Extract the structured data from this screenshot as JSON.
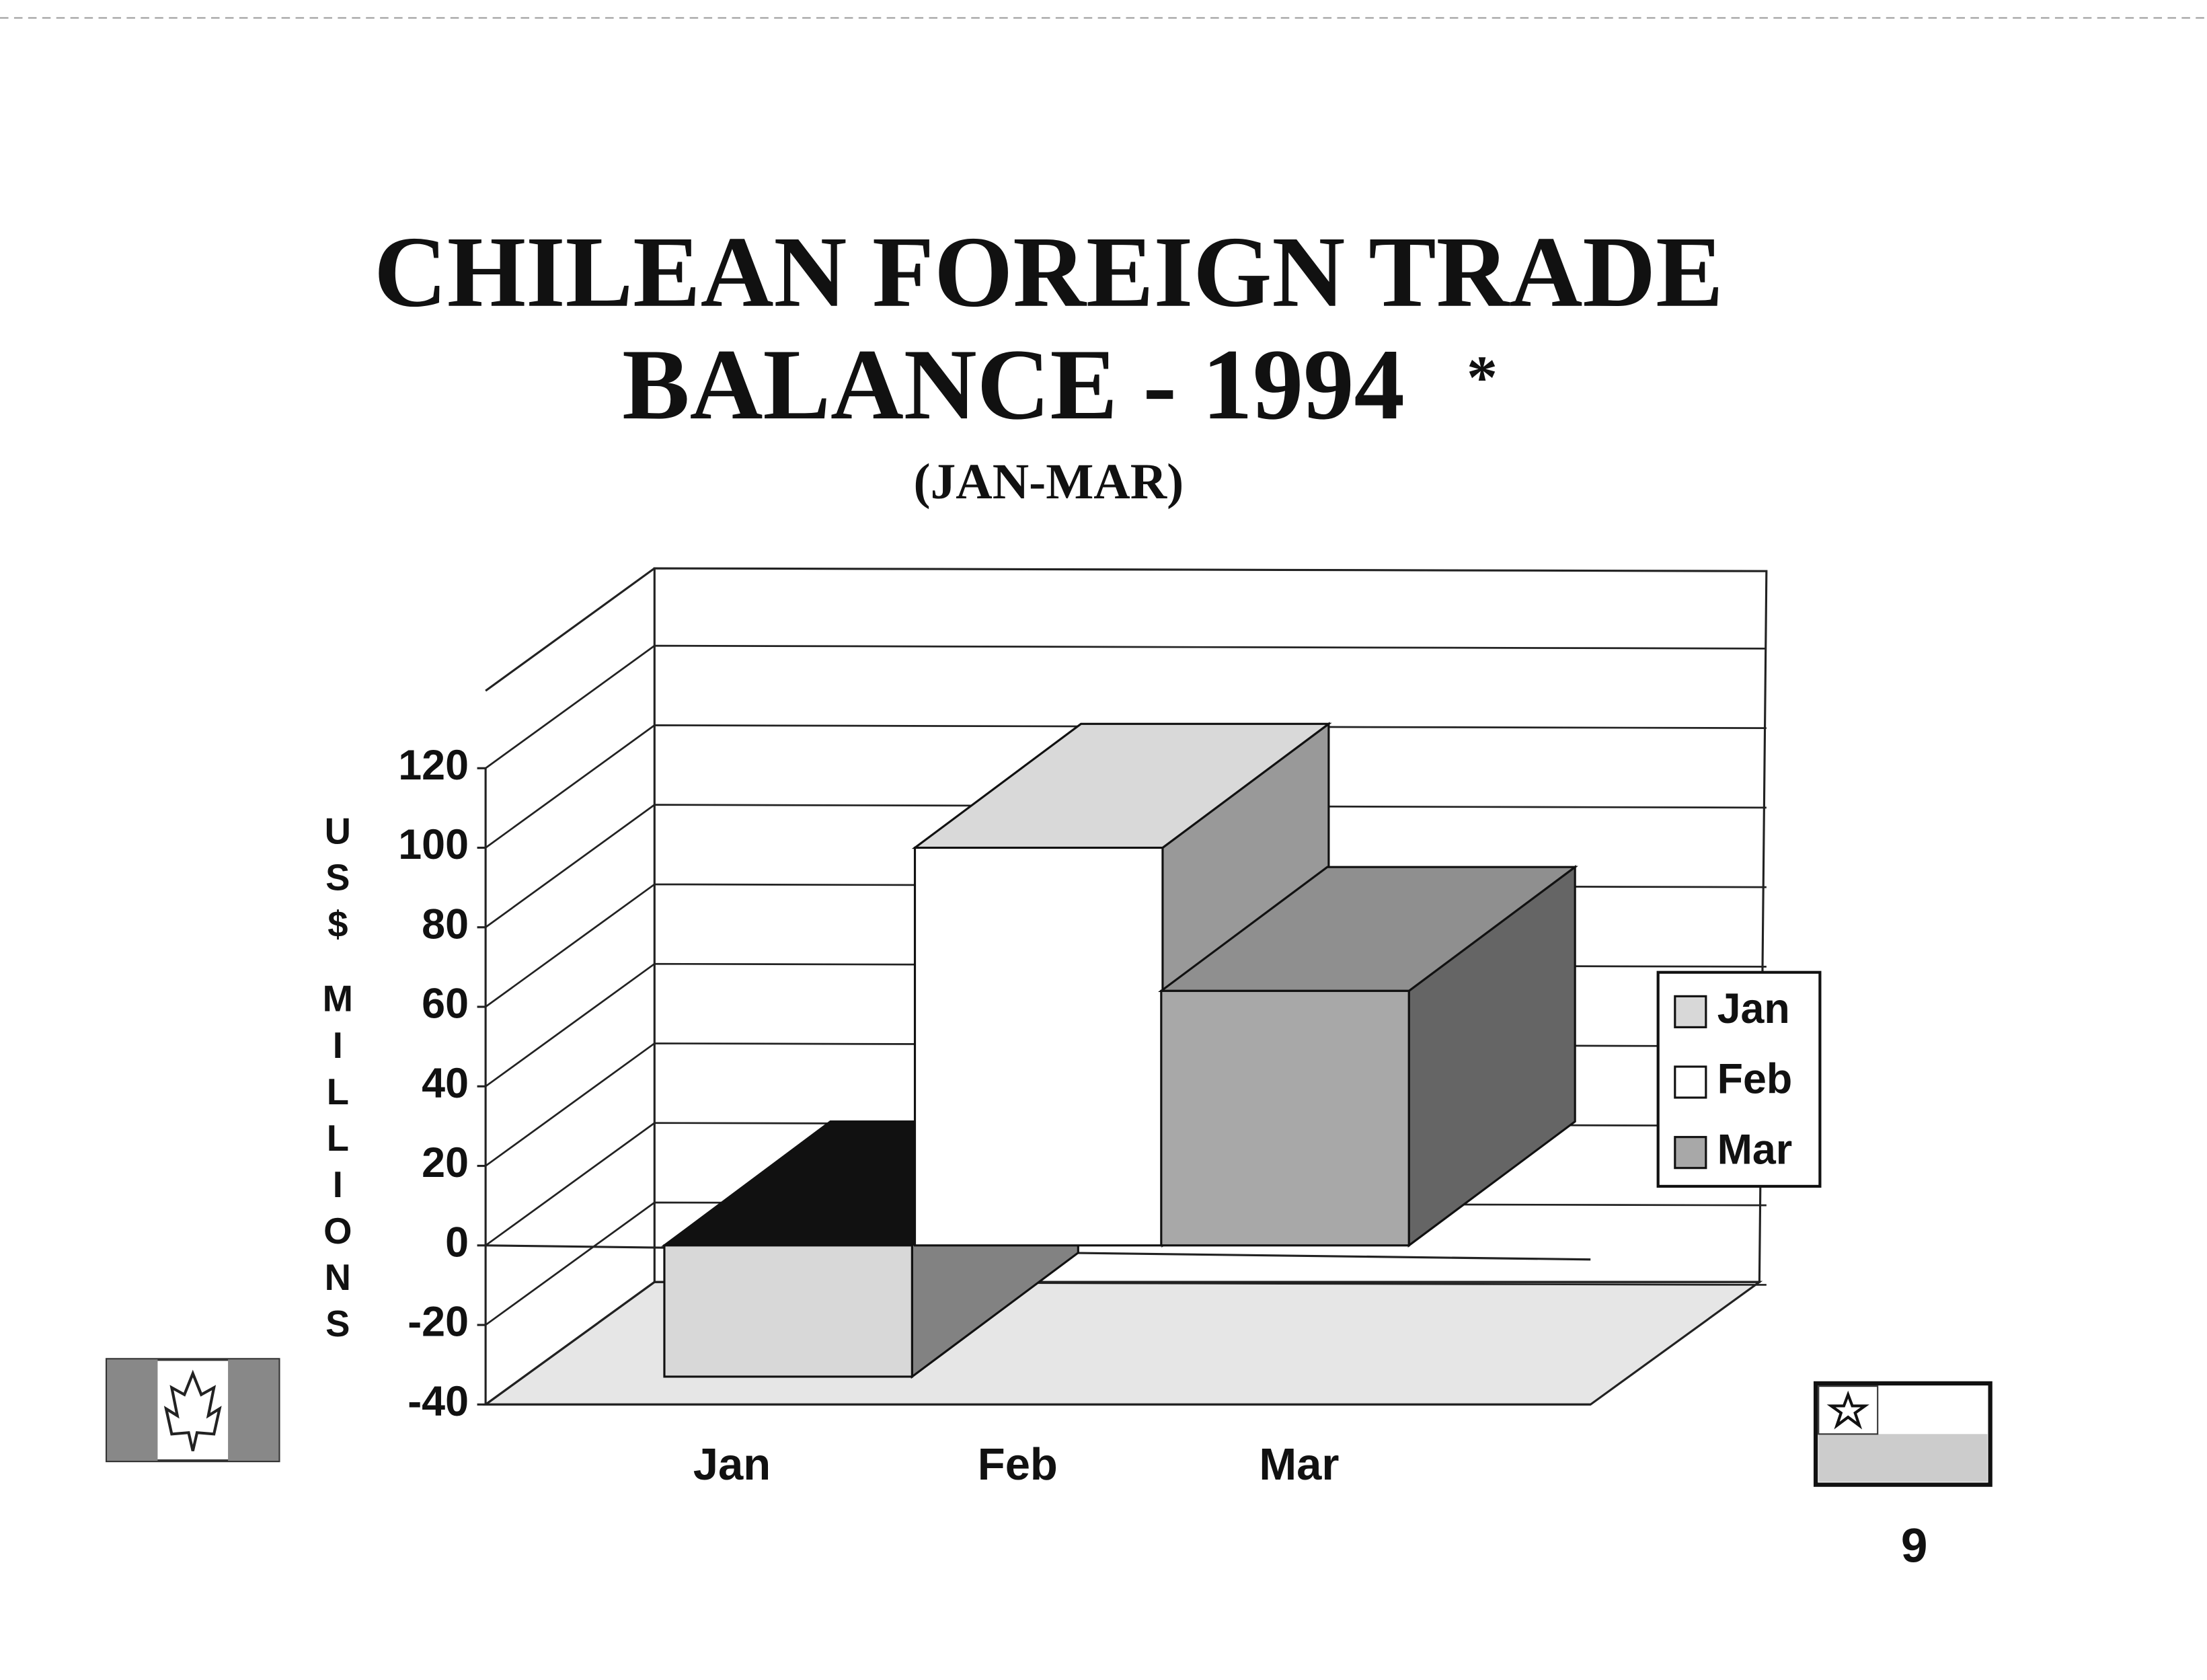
{
  "chart_data": {
    "type": "bar3d",
    "title": "CHILEAN FOREIGN TRADE",
    "title_line2": "BALANCE - 1994",
    "title_mark": "*",
    "subtitle": "(JAN-MAR)",
    "y_label": "US$ MILLIONS",
    "categories": [
      "Jan",
      "Feb",
      "Mar"
    ],
    "series": [
      {
        "name": "Jan",
        "color": "#d8d8d8",
        "values": [
          -33,
          null,
          null
        ]
      },
      {
        "name": "Feb",
        "color": "#ffffff",
        "values": [
          null,
          100,
          null
        ]
      },
      {
        "name": "Mar",
        "color": "#a8a8a8",
        "values": [
          null,
          null,
          64
        ]
      }
    ],
    "ylim": [
      -40,
      120
    ],
    "yticks": [
      -40,
      -20,
      0,
      20,
      40,
      60,
      80,
      100,
      120
    ],
    "grid": true,
    "legend": "right",
    "page_number": "9"
  }
}
